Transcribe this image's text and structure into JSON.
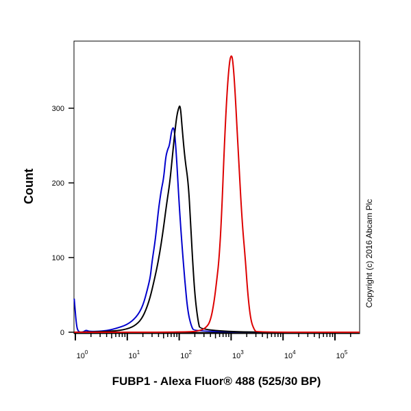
{
  "chart_data": {
    "type": "line",
    "xlabel": "FUBP1 - Alexa Fluor® 488 (525/30 BP)",
    "ylabel": "Count",
    "x_scale": "log",
    "xlim": [
      0.94,
      300000
    ],
    "ylim": [
      0,
      390
    ],
    "grid": false,
    "legend": "none",
    "x_ticks": [
      {
        "base": "10",
        "exp": "0",
        "value": 1
      },
      {
        "base": "10",
        "exp": "1",
        "value": 10
      },
      {
        "base": "10",
        "exp": "2",
        "value": 100
      },
      {
        "base": "10",
        "exp": "3",
        "value": 1000
      },
      {
        "base": "10",
        "exp": "4",
        "value": 10000
      },
      {
        "base": "10",
        "exp": "5",
        "value": 100000
      }
    ],
    "y_ticks": [
      "0",
      "100",
      "200",
      "300"
    ],
    "annotation": "Copyright (c) 2016 Abcam Plc",
    "series": [
      {
        "color": "#0000cc",
        "points": [
          [
            0.95,
            45
          ],
          [
            1.05,
            8
          ],
          [
            1.15,
            0
          ],
          [
            1.4,
            0
          ],
          [
            1.6,
            3
          ],
          [
            1.8,
            1
          ],
          [
            2.5,
            1
          ],
          [
            4,
            2
          ],
          [
            6,
            5
          ],
          [
            10,
            10
          ],
          [
            15,
            20
          ],
          [
            20,
            35
          ],
          [
            25,
            60
          ],
          [
            28,
            75
          ],
          [
            30,
            95
          ],
          [
            35,
            125
          ],
          [
            40,
            165
          ],
          [
            45,
            190
          ],
          [
            50,
            205
          ],
          [
            55,
            235
          ],
          [
            60,
            245
          ],
          [
            65,
            250
          ],
          [
            72,
            272
          ],
          [
            80,
            275
          ],
          [
            88,
            240
          ],
          [
            100,
            170
          ],
          [
            115,
            110
          ],
          [
            128,
            70
          ],
          [
            145,
            30
          ],
          [
            170,
            8
          ],
          [
            200,
            0
          ],
          [
            300000,
            0
          ]
        ]
      },
      {
        "color": "#000000",
        "points": [
          [
            0.95,
            0
          ],
          [
            5,
            1
          ],
          [
            10,
            4
          ],
          [
            15,
            10
          ],
          [
            20,
            20
          ],
          [
            26,
            40
          ],
          [
            32,
            65
          ],
          [
            41,
            100
          ],
          [
            50,
            140
          ],
          [
            58,
            175
          ],
          [
            66,
            200
          ],
          [
            75,
            240
          ],
          [
            83,
            270
          ],
          [
            90,
            290
          ],
          [
            97,
            300
          ],
          [
            105,
            305
          ],
          [
            115,
            270
          ],
          [
            130,
            230
          ],
          [
            150,
            200
          ],
          [
            165,
            150
          ],
          [
            180,
            100
          ],
          [
            200,
            50
          ],
          [
            230,
            15
          ],
          [
            260,
            0
          ],
          [
            300000,
            0
          ]
        ]
      },
      {
        "color": "#dd0000",
        "points": [
          [
            0.95,
            0
          ],
          [
            150,
            0
          ],
          [
            250,
            2
          ],
          [
            330,
            6
          ],
          [
            400,
            15
          ],
          [
            470,
            40
          ],
          [
            530,
            70
          ],
          [
            590,
            100
          ],
          [
            660,
            160
          ],
          [
            740,
            250
          ],
          [
            830,
            320
          ],
          [
            920,
            360
          ],
          [
            1000,
            372
          ],
          [
            1080,
            365
          ],
          [
            1200,
            320
          ],
          [
            1400,
            230
          ],
          [
            1620,
            150
          ],
          [
            1870,
            100
          ],
          [
            2100,
            50
          ],
          [
            2400,
            15
          ],
          [
            2800,
            3
          ],
          [
            3100,
            0
          ],
          [
            300000,
            0
          ]
        ]
      }
    ]
  }
}
